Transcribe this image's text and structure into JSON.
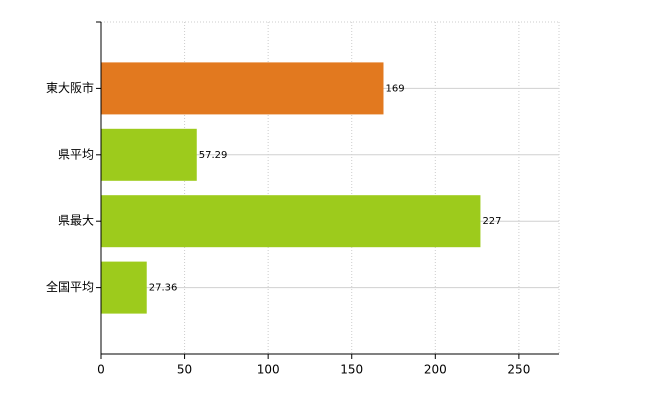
{
  "chart_data": {
    "type": "hbar",
    "categories": [
      "東大阪市",
      "県平均",
      "県最大",
      "全国平均"
    ],
    "values": [
      169,
      57.29,
      227,
      27.36
    ],
    "colors": [
      "#e2791f",
      "#9dcb1c",
      "#9dcb1c",
      "#9dcb1c"
    ],
    "xlim": [
      0,
      274
    ],
    "xticks": [
      0,
      50,
      100,
      150,
      200,
      250
    ],
    "grid": true
  }
}
